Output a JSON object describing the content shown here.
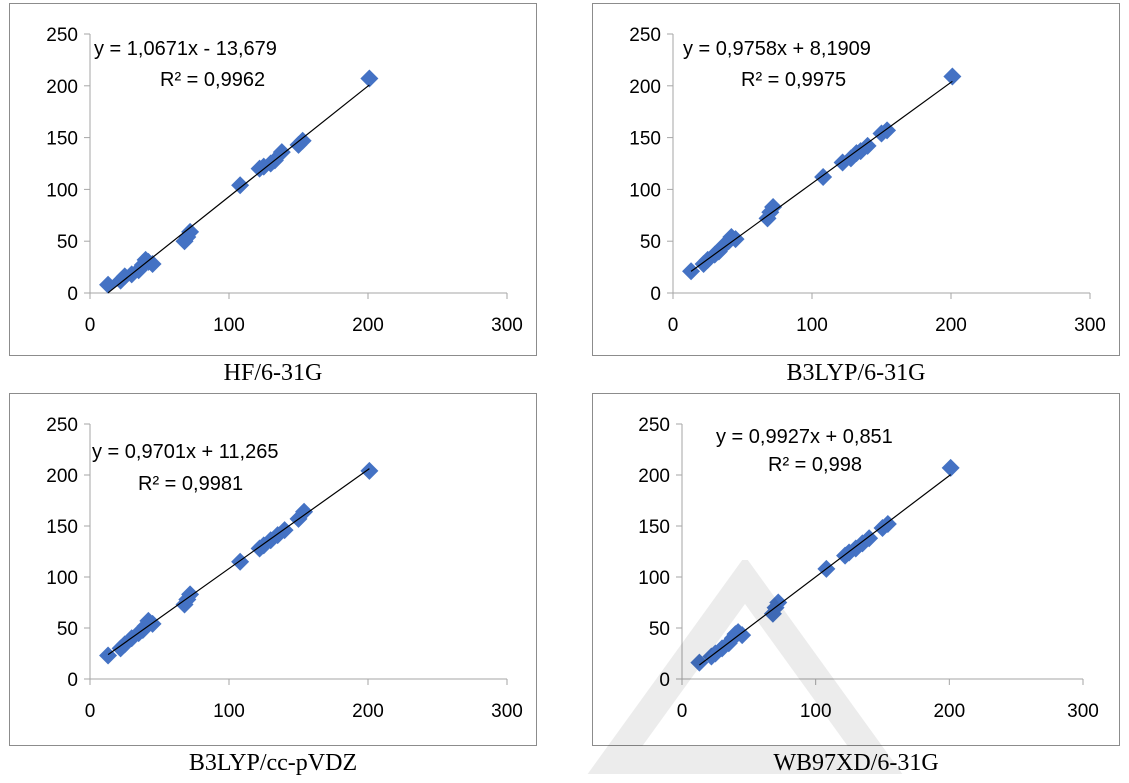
{
  "chart_data": [
    {
      "type": "scatter",
      "caption": "HF/6-31G",
      "equation": "y = 1,0671x - 13,679",
      "r_squared": "R² = 0,9962",
      "trendline": {
        "slope": 1.0671,
        "intercept": -13.679,
        "x_range": [
          13,
          201
        ]
      },
      "xlim": [
        0,
        300
      ],
      "ylim": [
        0,
        250
      ],
      "x_ticks": [
        "0",
        "100",
        "200",
        "300"
      ],
      "y_ticks": [
        "0",
        "50",
        "100",
        "150",
        "200",
        "250"
      ],
      "points": [
        {
          "x": 13,
          "y": 8
        },
        {
          "x": 22,
          "y": 12
        },
        {
          "x": 25,
          "y": 16
        },
        {
          "x": 30,
          "y": 18
        },
        {
          "x": 35,
          "y": 22
        },
        {
          "x": 38,
          "y": 27
        },
        {
          "x": 40,
          "y": 32
        },
        {
          "x": 42,
          "y": 30
        },
        {
          "x": 45,
          "y": 28
        },
        {
          "x": 68,
          "y": 50
        },
        {
          "x": 70,
          "y": 54
        },
        {
          "x": 72,
          "y": 59
        },
        {
          "x": 108,
          "y": 104
        },
        {
          "x": 122,
          "y": 120
        },
        {
          "x": 125,
          "y": 122
        },
        {
          "x": 130,
          "y": 125
        },
        {
          "x": 133,
          "y": 128
        },
        {
          "x": 138,
          "y": 136
        },
        {
          "x": 150,
          "y": 143
        },
        {
          "x": 153,
          "y": 147
        },
        {
          "x": 201,
          "y": 207
        }
      ],
      "colors": {
        "marker": "#4472C4",
        "trendline": "#000000"
      }
    },
    {
      "type": "scatter",
      "caption": "B3LYP/6-31G",
      "equation": "y = 0,9758x + 8,1909",
      "r_squared": "R² = 0,9975",
      "trendline": {
        "slope": 0.9758,
        "intercept": 8.1909,
        "x_range": [
          13,
          201
        ]
      },
      "xlim": [
        0,
        300
      ],
      "ylim": [
        0,
        250
      ],
      "x_ticks": [
        "0",
        "100",
        "200",
        "300"
      ],
      "y_ticks": [
        "0",
        "50",
        "100",
        "150",
        "200",
        "250"
      ],
      "points": [
        {
          "x": 13,
          "y": 21
        },
        {
          "x": 22,
          "y": 28
        },
        {
          "x": 25,
          "y": 32
        },
        {
          "x": 30,
          "y": 37
        },
        {
          "x": 33,
          "y": 40
        },
        {
          "x": 36,
          "y": 45
        },
        {
          "x": 40,
          "y": 50
        },
        {
          "x": 42,
          "y": 54
        },
        {
          "x": 45,
          "y": 52
        },
        {
          "x": 68,
          "y": 72
        },
        {
          "x": 70,
          "y": 78
        },
        {
          "x": 72,
          "y": 83
        },
        {
          "x": 108,
          "y": 112
        },
        {
          "x": 122,
          "y": 126
        },
        {
          "x": 128,
          "y": 130
        },
        {
          "x": 132,
          "y": 135
        },
        {
          "x": 135,
          "y": 137
        },
        {
          "x": 140,
          "y": 142
        },
        {
          "x": 150,
          "y": 154
        },
        {
          "x": 154,
          "y": 157
        },
        {
          "x": 201,
          "y": 209
        }
      ],
      "colors": {
        "marker": "#4472C4",
        "trendline": "#000000"
      }
    },
    {
      "type": "scatter",
      "caption": "B3LYP/cc-pVDZ",
      "equation": "y = 0,9701x + 11,265",
      "r_squared": "R² = 0,9981",
      "trendline": {
        "slope": 0.9701,
        "intercept": 11.265,
        "x_range": [
          13,
          201
        ]
      },
      "xlim": [
        0,
        300
      ],
      "ylim": [
        0,
        250
      ],
      "x_ticks": [
        "0",
        "100",
        "200",
        "300"
      ],
      "y_ticks": [
        "0",
        "50",
        "100",
        "150",
        "200",
        "250"
      ],
      "points": [
        {
          "x": 13,
          "y": 23
        },
        {
          "x": 22,
          "y": 30
        },
        {
          "x": 25,
          "y": 34
        },
        {
          "x": 30,
          "y": 40
        },
        {
          "x": 35,
          "y": 45
        },
        {
          "x": 38,
          "y": 48
        },
        {
          "x": 40,
          "y": 52
        },
        {
          "x": 42,
          "y": 57
        },
        {
          "x": 45,
          "y": 54
        },
        {
          "x": 68,
          "y": 73
        },
        {
          "x": 70,
          "y": 78
        },
        {
          "x": 72,
          "y": 83
        },
        {
          "x": 108,
          "y": 115
        },
        {
          "x": 122,
          "y": 128
        },
        {
          "x": 125,
          "y": 131
        },
        {
          "x": 130,
          "y": 136
        },
        {
          "x": 135,
          "y": 141
        },
        {
          "x": 140,
          "y": 146
        },
        {
          "x": 150,
          "y": 157
        },
        {
          "x": 154,
          "y": 164
        },
        {
          "x": 201,
          "y": 204
        }
      ],
      "colors": {
        "marker": "#4472C4",
        "trendline": "#000000"
      }
    },
    {
      "type": "scatter",
      "caption": "WB97XD/6-31G",
      "equation": "y = 0,9927x + 0,851",
      "r_squared": "R² = 0,998",
      "trendline": {
        "slope": 0.9927,
        "intercept": 0.851,
        "x_range": [
          13,
          201
        ]
      },
      "xlim": [
        0,
        300
      ],
      "ylim": [
        0,
        250
      ],
      "x_ticks": [
        "0",
        "100",
        "200",
        "300"
      ],
      "y_ticks": [
        "0",
        "50",
        "100",
        "150",
        "200",
        "250"
      ],
      "points": [
        {
          "x": 13,
          "y": 16
        },
        {
          "x": 22,
          "y": 22
        },
        {
          "x": 25,
          "y": 25
        },
        {
          "x": 30,
          "y": 30
        },
        {
          "x": 35,
          "y": 35
        },
        {
          "x": 38,
          "y": 40
        },
        {
          "x": 40,
          "y": 44
        },
        {
          "x": 42,
          "y": 46
        },
        {
          "x": 45,
          "y": 43
        },
        {
          "x": 68,
          "y": 64
        },
        {
          "x": 70,
          "y": 70
        },
        {
          "x": 72,
          "y": 75
        },
        {
          "x": 108,
          "y": 108
        },
        {
          "x": 122,
          "y": 121
        },
        {
          "x": 125,
          "y": 124
        },
        {
          "x": 130,
          "y": 128
        },
        {
          "x": 135,
          "y": 133
        },
        {
          "x": 140,
          "y": 138
        },
        {
          "x": 150,
          "y": 148
        },
        {
          "x": 154,
          "y": 152
        },
        {
          "x": 201,
          "y": 207
        }
      ],
      "colors": {
        "marker": "#4472C4",
        "trendline": "#000000"
      }
    }
  ]
}
